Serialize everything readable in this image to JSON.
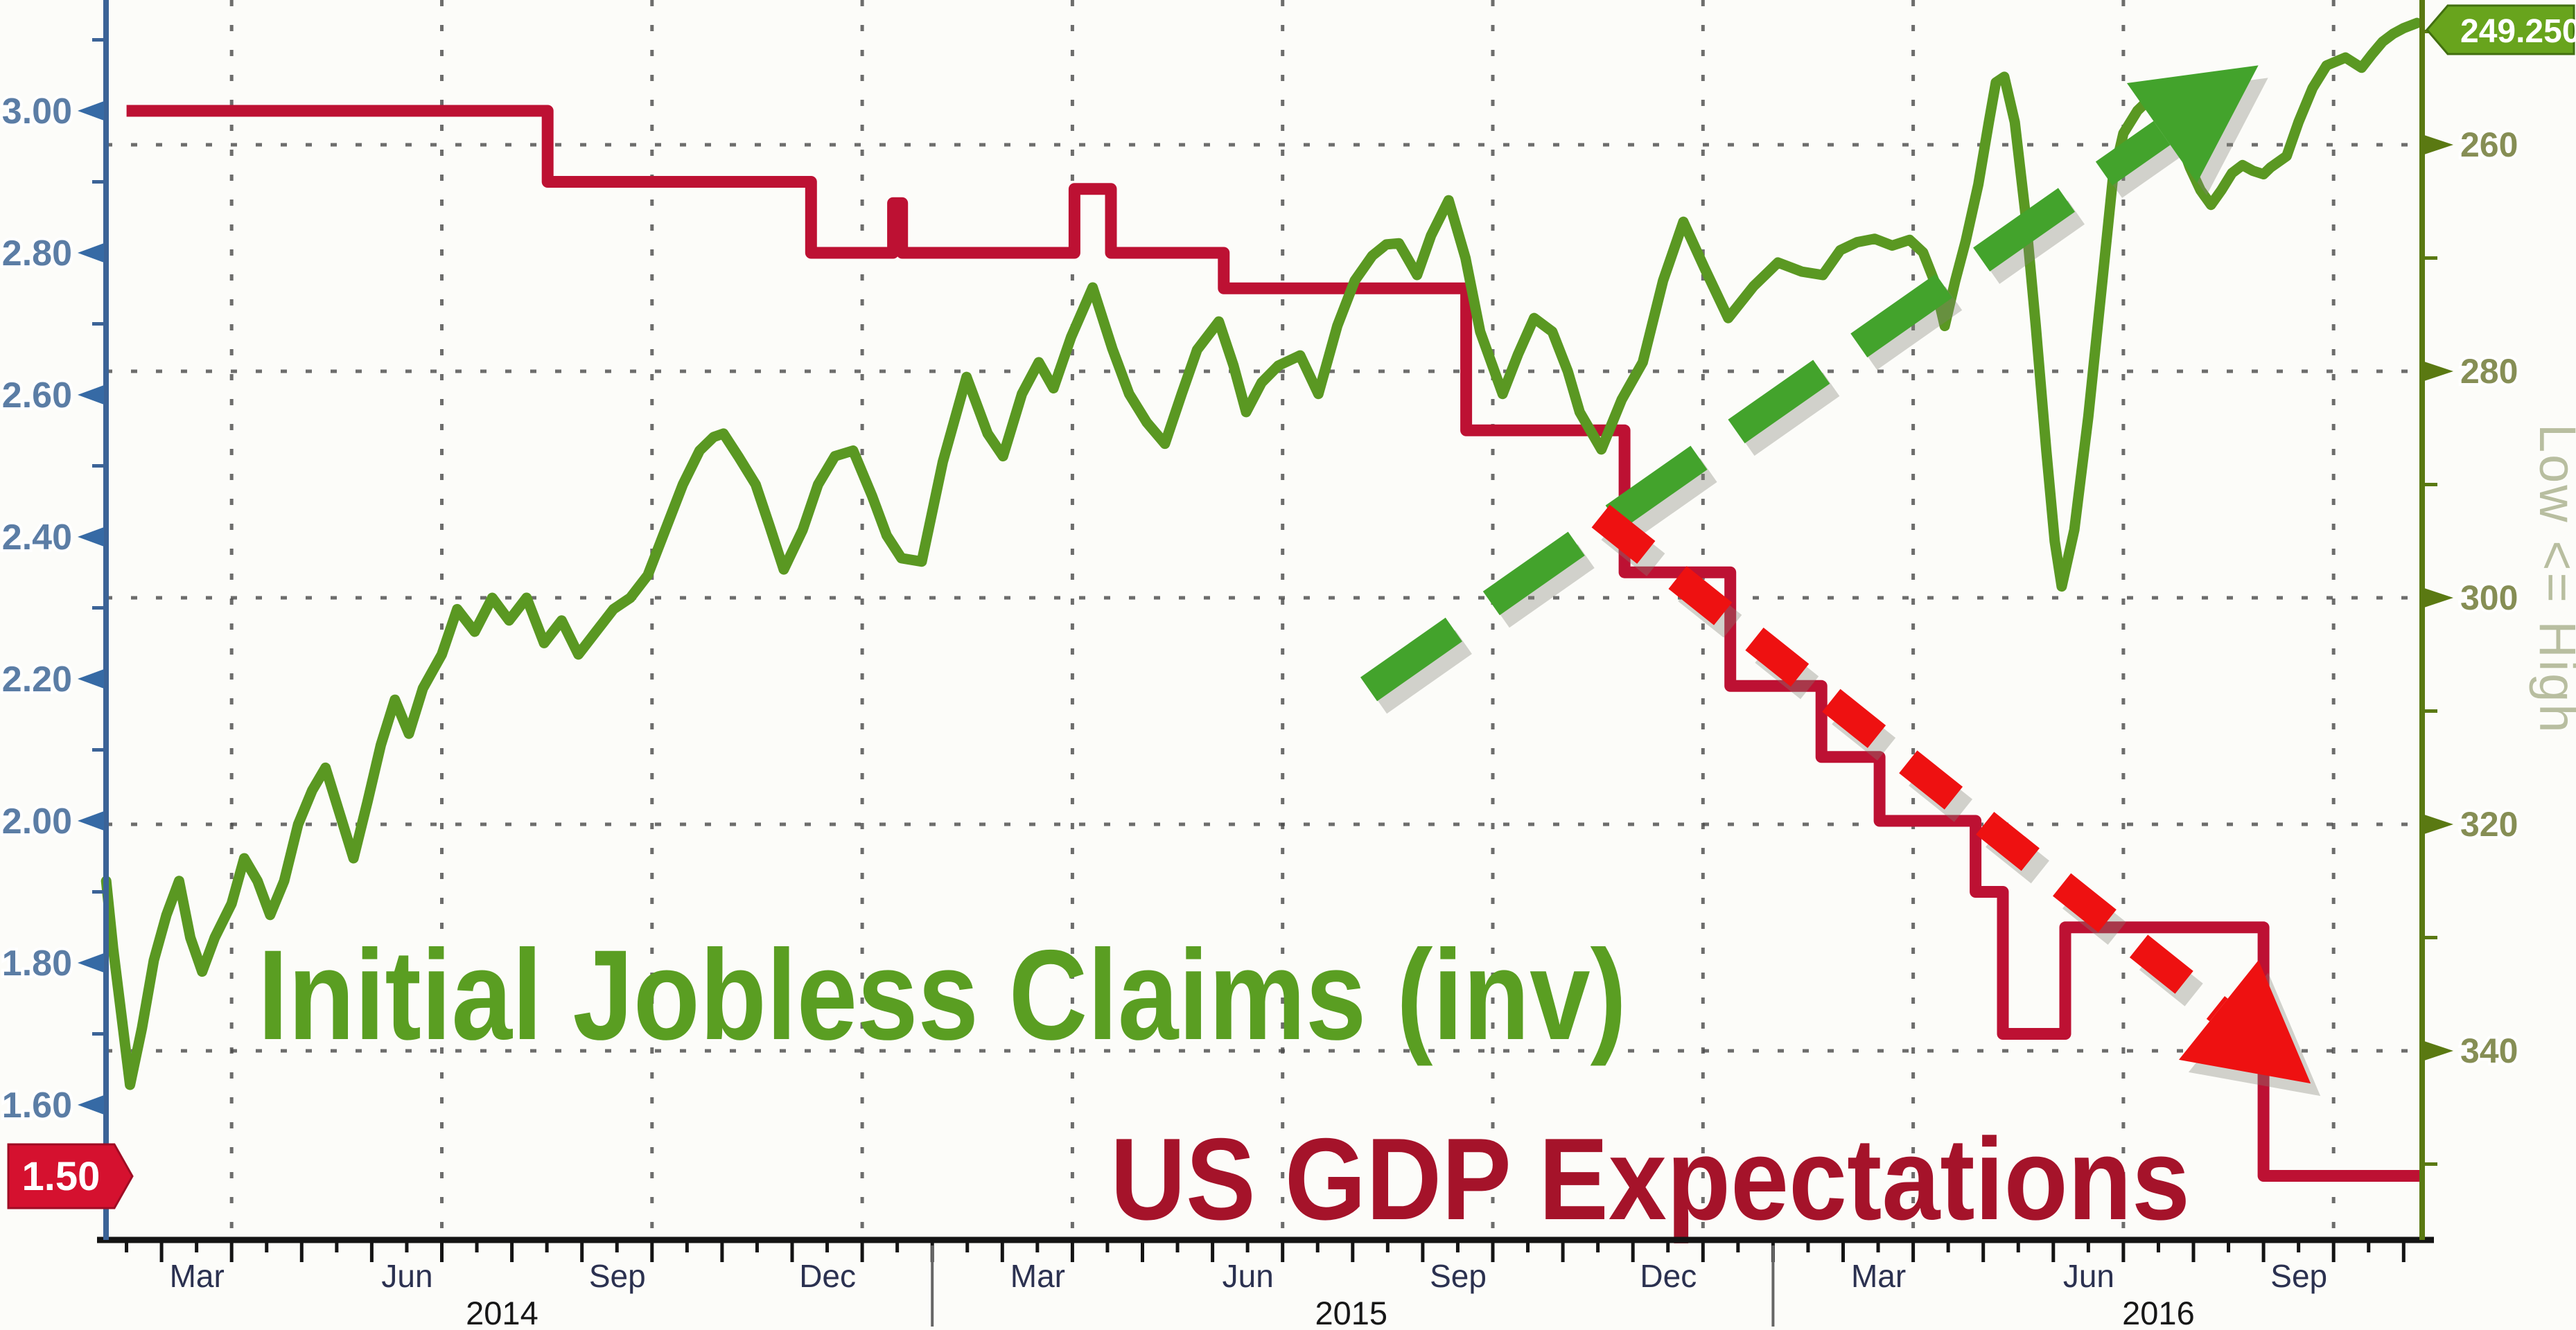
{
  "chart_data": {
    "type": "line",
    "title": "",
    "x_unit": "months_since_2014-01",
    "x_range": [
      0.2,
      33.27
    ],
    "series": [
      {
        "name": "Initial Jobless Claims (inv)",
        "axis": "right",
        "style": "line",
        "color": "#5a9822",
        "points": [
          [
            0.21,
            325
          ],
          [
            0.31,
            331
          ],
          [
            0.43,
            337
          ],
          [
            0.55,
            343
          ],
          [
            0.72,
            338
          ],
          [
            0.89,
            332
          ],
          [
            1.07,
            328
          ],
          [
            1.25,
            325
          ],
          [
            1.41,
            330
          ],
          [
            1.58,
            333
          ],
          [
            1.76,
            330
          ],
          [
            2.0,
            327
          ],
          [
            2.18,
            323
          ],
          [
            2.37,
            325
          ],
          [
            2.55,
            328
          ],
          [
            2.75,
            325
          ],
          [
            2.95,
            320
          ],
          [
            3.15,
            317
          ],
          [
            3.34,
            315
          ],
          [
            3.54,
            319
          ],
          [
            3.74,
            323
          ],
          [
            3.94,
            318
          ],
          [
            4.13,
            313
          ],
          [
            4.33,
            309
          ],
          [
            4.53,
            312
          ],
          [
            4.73,
            308
          ],
          [
            5.0,
            305
          ],
          [
            5.22,
            301
          ],
          [
            5.47,
            303
          ],
          [
            5.72,
            300
          ],
          [
            5.96,
            302
          ],
          [
            6.21,
            300
          ],
          [
            6.46,
            304
          ],
          [
            6.71,
            302
          ],
          [
            6.95,
            305
          ],
          [
            7.2,
            303
          ],
          [
            7.45,
            301
          ],
          [
            7.69,
            300
          ],
          [
            7.94,
            298
          ],
          [
            8.19,
            294
          ],
          [
            8.44,
            290
          ],
          [
            8.68,
            287
          ],
          [
            8.88,
            285.8
          ],
          [
            9.02,
            285.5
          ],
          [
            9.23,
            287.5
          ],
          [
            9.48,
            290
          ],
          [
            9.67,
            293.5
          ],
          [
            9.88,
            297.5
          ],
          [
            10.15,
            294
          ],
          [
            10.37,
            290
          ],
          [
            10.61,
            287.5
          ],
          [
            10.87,
            287
          ],
          [
            11.14,
            291
          ],
          [
            11.35,
            294.5
          ],
          [
            11.56,
            296.5
          ],
          [
            11.85,
            296.8
          ],
          [
            12.15,
            288
          ],
          [
            12.49,
            280.5
          ],
          [
            12.79,
            285.5
          ],
          [
            13.01,
            287.5
          ],
          [
            13.28,
            282
          ],
          [
            13.52,
            279.2
          ],
          [
            13.73,
            281.5
          ],
          [
            13.98,
            277
          ],
          [
            14.29,
            272.6
          ],
          [
            14.57,
            278
          ],
          [
            14.81,
            282
          ],
          [
            15.06,
            284.5
          ],
          [
            15.32,
            286.4
          ],
          [
            15.56,
            282
          ],
          [
            15.78,
            278.1
          ],
          [
            16.09,
            275.6
          ],
          [
            16.3,
            279.5
          ],
          [
            16.48,
            283.6
          ],
          [
            16.7,
            281
          ],
          [
            16.94,
            279.5
          ],
          [
            17.25,
            278.6
          ],
          [
            17.51,
            282
          ],
          [
            17.78,
            276
          ],
          [
            18.03,
            272
          ],
          [
            18.28,
            269.8
          ],
          [
            18.48,
            268.8
          ],
          [
            18.66,
            268.7
          ],
          [
            18.92,
            271.5
          ],
          [
            19.12,
            268
          ],
          [
            19.37,
            264.9
          ],
          [
            19.61,
            270
          ],
          [
            19.82,
            276.5
          ],
          [
            20.14,
            282
          ],
          [
            20.36,
            278.5
          ],
          [
            20.59,
            275.3
          ],
          [
            20.85,
            276.5
          ],
          [
            21.07,
            280
          ],
          [
            21.24,
            283.6
          ],
          [
            21.55,
            286.9
          ],
          [
            21.84,
            282.5
          ],
          [
            22.14,
            279.2
          ],
          [
            22.43,
            272
          ],
          [
            22.72,
            266.8
          ],
          [
            23.03,
            271
          ],
          [
            23.36,
            275.3
          ],
          [
            23.72,
            272.5
          ],
          [
            24.07,
            270.4
          ],
          [
            24.41,
            271.2
          ],
          [
            24.71,
            271.5
          ],
          [
            24.96,
            269.3
          ],
          [
            25.2,
            268.6
          ],
          [
            25.45,
            268.3
          ],
          [
            25.7,
            268.9
          ],
          [
            25.95,
            268.4
          ],
          [
            26.14,
            269.5
          ],
          [
            26.3,
            272
          ],
          [
            26.45,
            276
          ],
          [
            26.6,
            272
          ],
          [
            26.75,
            268.5
          ],
          [
            26.93,
            263.5
          ],
          [
            27.08,
            258
          ],
          [
            27.18,
            254.5
          ],
          [
            27.3,
            254
          ],
          [
            27.45,
            258
          ],
          [
            27.6,
            266
          ],
          [
            27.75,
            276
          ],
          [
            27.9,
            287
          ],
          [
            28.02,
            295
          ],
          [
            28.12,
            299
          ],
          [
            28.3,
            294
          ],
          [
            28.5,
            284
          ],
          [
            28.7,
            272
          ],
          [
            28.85,
            263
          ],
          [
            29.0,
            259
          ],
          [
            29.2,
            257
          ],
          [
            29.4,
            255.8
          ],
          [
            29.5,
            255.5
          ],
          [
            29.65,
            257
          ],
          [
            29.8,
            259.5
          ],
          [
            29.95,
            262
          ],
          [
            30.1,
            264
          ],
          [
            30.25,
            265.3
          ],
          [
            30.4,
            264
          ],
          [
            30.55,
            262.5
          ],
          [
            30.7,
            261.8
          ],
          [
            30.85,
            262.3
          ],
          [
            31.0,
            262.6
          ],
          [
            31.1,
            262
          ],
          [
            31.33,
            261
          ],
          [
            31.5,
            258
          ],
          [
            31.7,
            255
          ],
          [
            31.9,
            253
          ],
          [
            32.17,
            252.3
          ],
          [
            32.4,
            253.2
          ],
          [
            32.55,
            252
          ],
          [
            32.7,
            250.9
          ],
          [
            32.85,
            250.2
          ],
          [
            33.0,
            249.7
          ],
          [
            33.19,
            249.25
          ]
        ],
        "last_value": 249.25
      },
      {
        "name": "US GDP Expectations",
        "axis": "left",
        "style": "step",
        "color": "#bd1133",
        "steps": [
          [
            0.5,
            3.0
          ],
          [
            6.51,
            2.9
          ],
          [
            10.27,
            2.8
          ],
          [
            11.44,
            2.87
          ],
          [
            11.57,
            2.8
          ],
          [
            14.03,
            2.89
          ],
          [
            14.55,
            2.8
          ],
          [
            16.16,
            2.75
          ],
          [
            19.62,
            2.55
          ],
          [
            21.88,
            2.35
          ],
          [
            23.39,
            2.19
          ],
          [
            24.69,
            2.09
          ],
          [
            25.52,
            2.0
          ],
          [
            26.89,
            1.9
          ],
          [
            27.28,
            1.7
          ],
          [
            28.17,
            1.85
          ],
          [
            31.0,
            1.5
          ]
        ],
        "end_m": 33.27,
        "last_value": 1.5
      }
    ],
    "left_axis": {
      "ticks": [
        "3.00",
        "2.80",
        "2.60",
        "2.40",
        "2.20",
        "2.00",
        "1.80",
        "1.60"
      ],
      "tick_values": [
        3.0,
        2.8,
        2.6,
        2.4,
        2.2,
        2.0,
        1.8,
        1.6
      ],
      "minor_step": 0.1,
      "badge": "1.50",
      "badge_value": 1.5,
      "label_color": "#5b7da5",
      "axis_color": "#3b6397",
      "badge_color": "#d5112f"
    },
    "right_axis": {
      "inverted": true,
      "ticks": [
        "260",
        "280",
        "300",
        "320",
        "340"
      ],
      "tick_values": [
        260,
        280,
        300,
        320,
        340
      ],
      "minor_values": [
        250,
        270,
        290,
        310,
        330,
        350
      ],
      "badge": "249.250",
      "badge_value": 249.25,
      "side_label": "Low <= High",
      "label_color": "#868e55",
      "axis_color": "#5a7912",
      "badge_color": "#68a41d"
    },
    "x_axis": {
      "years": [
        {
          "label": "2014",
          "center_m": 5.86,
          "months": [
            {
              "t": "Mar",
              "m": 2
            },
            {
              "t": "Jun",
              "m": 5
            },
            {
              "t": "Sep",
              "m": 8
            },
            {
              "t": "Dec",
              "m": 11
            }
          ]
        },
        {
          "label": "2015",
          "center_m": 17.98,
          "months": [
            {
              "t": "Mar",
              "m": 14
            },
            {
              "t": "Jun",
              "m": 17
            },
            {
              "t": "Sep",
              "m": 20
            },
            {
              "t": "Dec",
              "m": 23
            }
          ]
        },
        {
          "label": "2016",
          "center_m": 29.5,
          "months": [
            {
              "t": "Mar",
              "m": 26
            },
            {
              "t": "Jun",
              "m": 29
            },
            {
              "t": "Sep",
              "m": 32
            }
          ]
        }
      ],
      "year_separators_m": [
        12,
        24
      ],
      "quarter_gridlines_m": [
        2,
        5,
        8,
        11,
        14,
        17,
        20,
        23,
        26,
        29,
        32
      ]
    },
    "annotations": [
      {
        "type": "trend-arrow",
        "series": "Initial Jobless Claims (inv)",
        "direction": "up-right",
        "color": "#43a32c",
        "dashed": true,
        "from_m": 18.23,
        "to_m": 29.55
      },
      {
        "type": "trend-arrow",
        "series": "US GDP Expectations",
        "direction": "down-right",
        "color": "#ee1111",
        "dashed": true,
        "from_m": 21.54,
        "to_m": 30.36
      }
    ],
    "grid": {
      "h_lines_at_right_values": [
        260,
        280,
        300,
        320,
        340
      ],
      "style": "dotted",
      "color": "#4a4a4a"
    }
  },
  "labels": {
    "claims_series": "Initial Jobless Claims (inv)",
    "gdp_series": "US GDP Expectations",
    "right_side": "Low <= High",
    "left_badge": "1.50",
    "right_badge": "249.250"
  },
  "colors": {
    "background": "#fcfcf9",
    "claims_green": "#5a9822",
    "claims_text_green": "#5a9e22",
    "gdp_red": "#bd1133",
    "gdp_text_red": "#a5132a",
    "arrow_green": "#43a32c",
    "arrow_red": "#ee1111",
    "left_axis_blue": "#3b6397",
    "right_axis_olive": "#5a7912",
    "month_label": "#2b3150",
    "year_label": "#171717"
  }
}
